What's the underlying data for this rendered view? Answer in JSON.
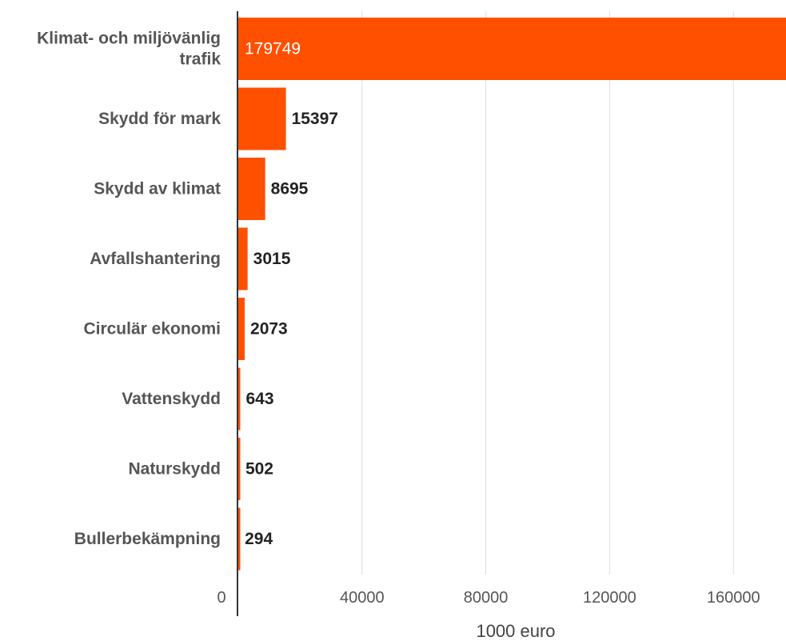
{
  "chart_data": {
    "type": "bar",
    "orientation": "horizontal",
    "categories": [
      [
        "Klimat- och miljövänlig",
        "trafik"
      ],
      [
        "Skydd för mark"
      ],
      [
        "Skydd av klimat"
      ],
      [
        "Avfallshantering"
      ],
      [
        "Circulär ekonomi"
      ],
      [
        "Vattenskydd"
      ],
      [
        "Naturskydd"
      ],
      [
        "Bullerbekämpning"
      ]
    ],
    "values": [
      179749,
      15397,
      8695,
      3015,
      2073,
      643,
      502,
      294
    ],
    "value_labels": [
      "179749",
      "15397",
      "8695",
      "3015",
      "2073",
      "643",
      "502",
      "294"
    ],
    "xticks": [
      0,
      40000,
      80000,
      120000,
      160000
    ],
    "xtick_labels": [
      "0",
      "40000",
      "80000",
      "120000",
      "160000"
    ],
    "xlim": [
      0,
      177000
    ],
    "xlabel": "1000 euro",
    "title": "",
    "grid": true,
    "bar_color": "#ff5000"
  }
}
